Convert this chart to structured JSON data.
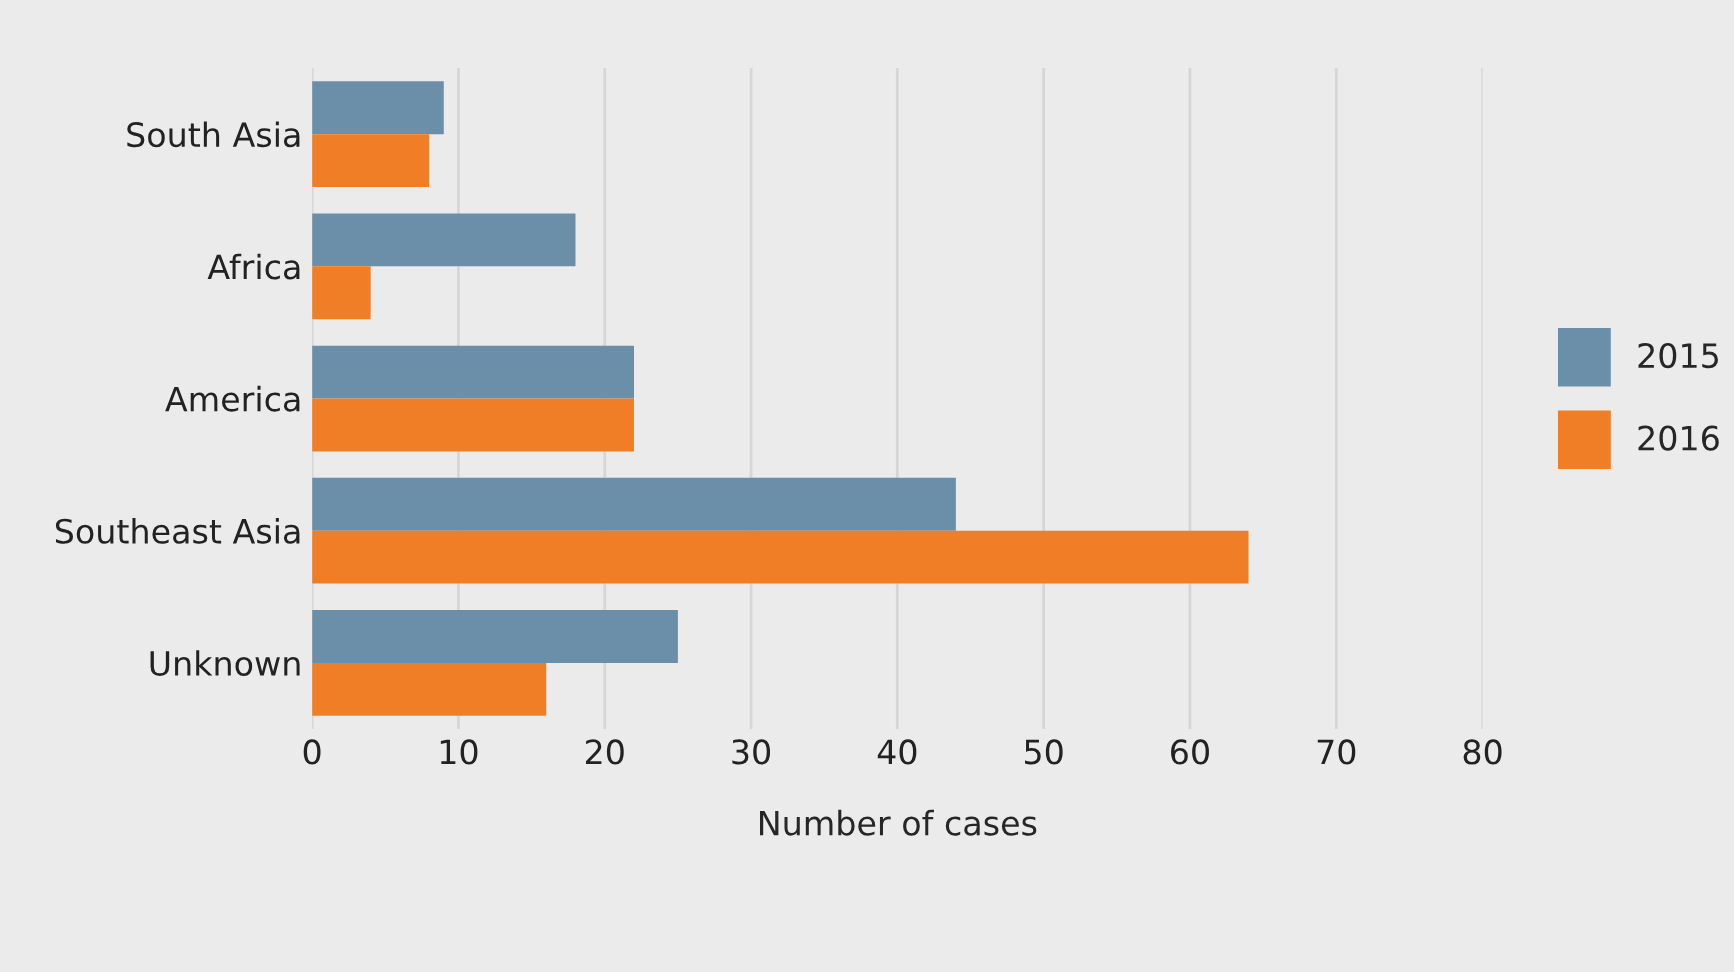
{
  "chart_data": {
    "type": "bar",
    "orientation": "horizontal",
    "xlabel": "Number of cases",
    "categories": [
      "South Asia",
      "Africa",
      "America",
      "Southeast Asia",
      "Unknown"
    ],
    "series": [
      {
        "name": "2015",
        "color": "#6b8fa9",
        "values": [
          9,
          18,
          22,
          44,
          25
        ]
      },
      {
        "name": "2016",
        "color": "#f07e26",
        "values": [
          8,
          4,
          22,
          64,
          16
        ]
      }
    ],
    "xlim": [
      0,
      80
    ],
    "xticks": [
      0,
      10,
      20,
      30,
      40,
      50,
      60,
      70,
      80
    ],
    "grid": "x",
    "legend": "right"
  }
}
